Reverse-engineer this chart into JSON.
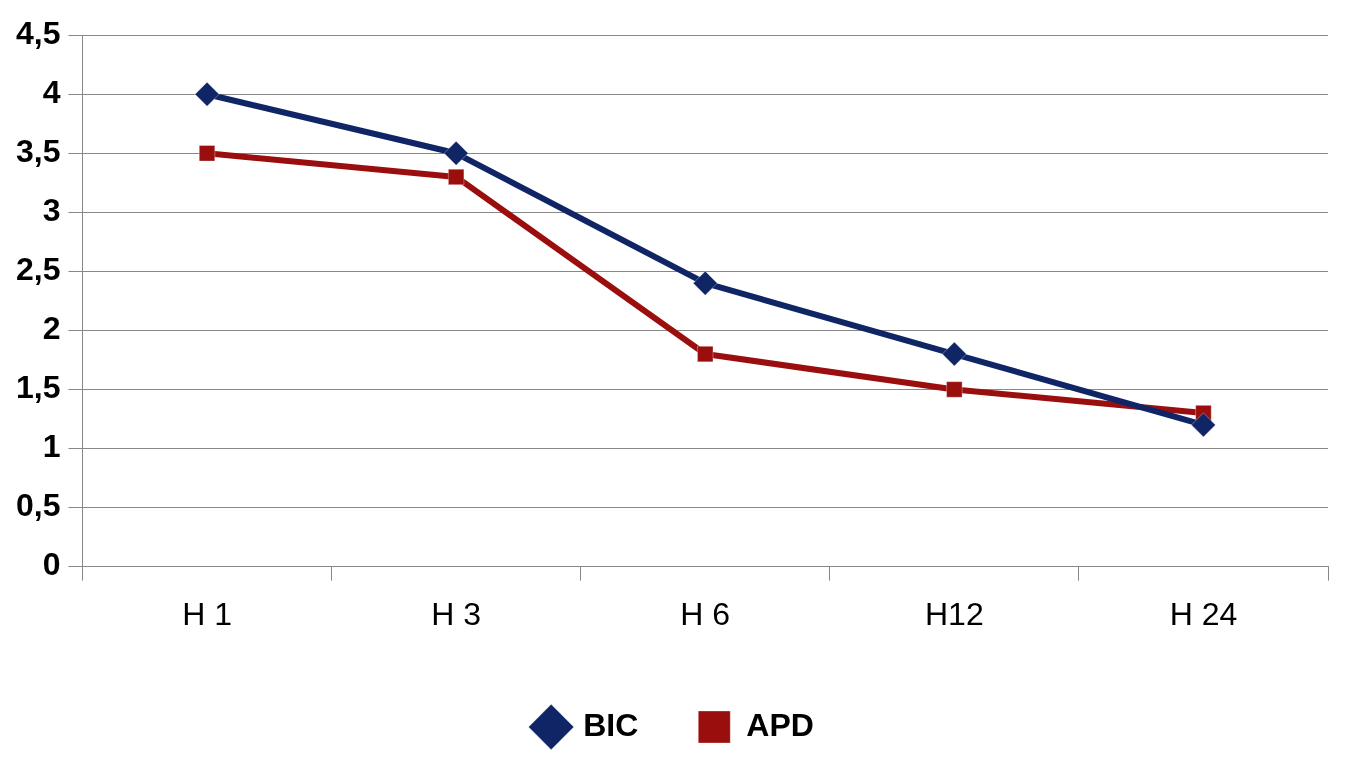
{
  "chart_data": {
    "type": "line",
    "categories": [
      "H 1",
      "H 3",
      "H 6",
      "H12",
      "H 24"
    ],
    "series": [
      {
        "name": "BIC",
        "color": "#0f2566",
        "marker": "diamond",
        "values": [
          4,
          3.5,
          2.4,
          1.8,
          1.2
        ]
      },
      {
        "name": "APD",
        "color": "#9b0e0e",
        "marker": "square",
        "values": [
          3.5,
          3.3,
          1.8,
          1.5,
          1.3
        ]
      }
    ],
    "ylim": [
      0,
      4.5
    ],
    "yticks": [
      {
        "value": 0,
        "label": "0"
      },
      {
        "value": 0.5,
        "label": "0,5"
      },
      {
        "value": 1,
        "label": "1"
      },
      {
        "value": 1.5,
        "label": "1,5"
      },
      {
        "value": 2,
        "label": "2"
      },
      {
        "value": 2.5,
        "label": "2,5"
      },
      {
        "value": 3,
        "label": "3"
      },
      {
        "value": 3.5,
        "label": "3,5"
      },
      {
        "value": 4,
        "label": "4"
      },
      {
        "value": 4.5,
        "label": "4,5"
      }
    ],
    "grid": "y",
    "legend": "bottom",
    "line_style": "solid"
  }
}
